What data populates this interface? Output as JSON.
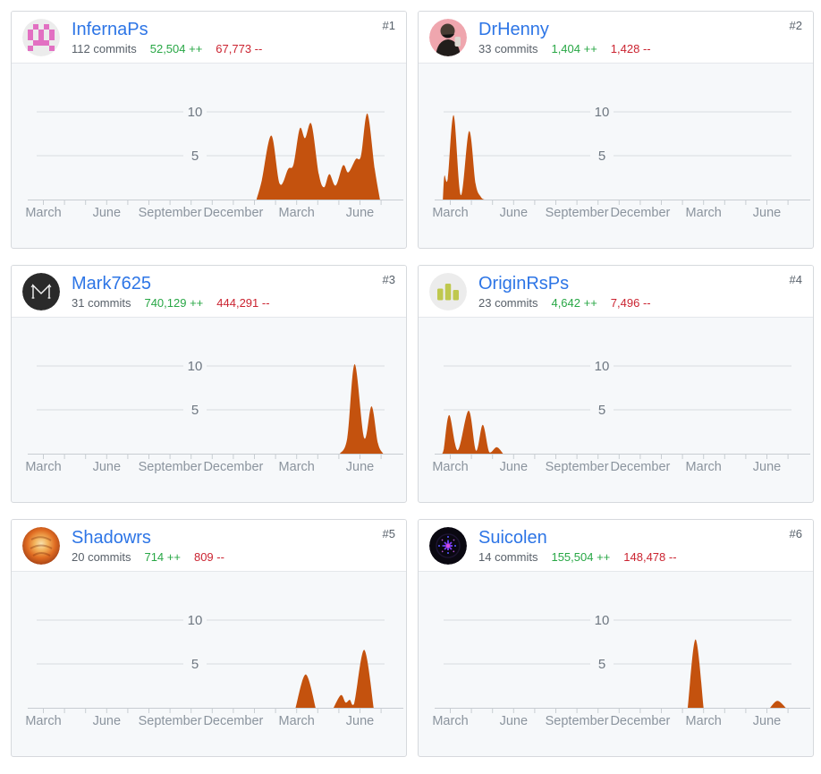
{
  "page": {
    "background": "#ffffff"
  },
  "theme": {
    "card_border": "#d6d9dd",
    "card_header_bg": "#ffffff",
    "chart_bg": "#f6f8fa",
    "link_blue": "#2d75e6",
    "additions_green": "#28a745",
    "deletions_red": "#cb2431",
    "muted_gray": "#586069",
    "rank_gray": "#57606a",
    "axis_line": "#c8cdd2",
    "grid_line": "#d8dce0",
    "tick_label": "#8b949e",
    "y_label": "#6e7781",
    "area_fill": "#c4520e"
  },
  "axis": {
    "x_labels": [
      "March",
      "June",
      "September",
      "December",
      "March",
      "June"
    ],
    "y_ticks": [
      10,
      5
    ],
    "x_unit": "month-index (0 = January year 1, 17 = June year 2)",
    "y_unit": "commits per week"
  },
  "contributors": [
    {
      "rank": "#1",
      "name": "InfernaPs",
      "commits": "112 commits",
      "additions": "52,504 ++",
      "deletions": "67,773 --",
      "avatar": {
        "type": "identicon",
        "fg": "#e270c2",
        "bg": "#ececec"
      },
      "chart_data": {
        "type": "area",
        "areas": [
          [
            [
              12.1,
              0
            ],
            [
              12.35,
              2.2
            ],
            [
              12.8,
              7.3
            ],
            [
              13.2,
              1.8
            ],
            [
              13.6,
              3.5
            ],
            [
              13.85,
              4.0
            ],
            [
              14.15,
              8.1
            ],
            [
              14.4,
              7.0
            ],
            [
              14.7,
              8.6
            ],
            [
              15.05,
              2.9
            ],
            [
              15.3,
              1.4
            ],
            [
              15.55,
              2.9
            ],
            [
              15.85,
              1.6
            ],
            [
              16.2,
              3.9
            ],
            [
              16.45,
              3.1
            ],
            [
              16.8,
              4.6
            ],
            [
              17.05,
              5.0
            ],
            [
              17.35,
              9.8
            ],
            [
              17.7,
              3.5
            ],
            [
              17.95,
              0
            ]
          ]
        ]
      }
    },
    {
      "rank": "#2",
      "name": "DrHenny",
      "commits": "33 commits",
      "additions": "1,404 ++",
      "deletions": "1,428 --",
      "avatar": {
        "type": "photo",
        "bg": "#efa6ae",
        "body": "#211d1b",
        "head": "#473c33",
        "mask": "#141414",
        "accent": "#ddd8d2"
      },
      "chart_data": {
        "type": "area",
        "areas": [
          [
            [
              1.65,
              0
            ],
            [
              1.72,
              2.7
            ],
            [
              1.88,
              2.4
            ],
            [
              2.16,
              9.6
            ],
            [
              2.5,
              0.5
            ],
            [
              2.89,
              7.8
            ],
            [
              3.2,
              1.8
            ],
            [
              3.45,
              0.3
            ],
            [
              3.62,
              0
            ]
          ]
        ]
      }
    },
    {
      "rank": "#3",
      "name": "Mark7625",
      "commits": "31 commits",
      "additions": "740,129 ++",
      "deletions": "444,291 --",
      "avatar": {
        "type": "monogram",
        "bg": "#2a2a2a",
        "fg": "#f5f5f5"
      },
      "chart_data": {
        "type": "area",
        "areas": [
          [
            [
              16.05,
              0
            ],
            [
              16.4,
              1.8
            ],
            [
              16.75,
              10.2
            ],
            [
              17.2,
              1.8
            ],
            [
              17.55,
              5.4
            ],
            [
              17.85,
              1.2
            ],
            [
              18.1,
              0
            ]
          ]
        ]
      }
    },
    {
      "rank": "#4",
      "name": "OriginRsPs",
      "commits": "23 commits",
      "additions": "4,642 ++",
      "deletions": "7,496 --",
      "avatar": {
        "type": "bars",
        "fg": "#bfc84e",
        "bg": "#ececec"
      },
      "chart_data": {
        "type": "area",
        "areas": [
          [
            [
              1.62,
              0
            ],
            [
              1.7,
              0.6
            ],
            [
              1.95,
              4.4
            ],
            [
              2.35,
              0.4
            ],
            [
              2.87,
              4.9
            ],
            [
              3.22,
              0.35
            ],
            [
              3.54,
              3.3
            ],
            [
              3.85,
              0.15
            ],
            [
              4.2,
              0.75
            ],
            [
              4.5,
              0
            ]
          ]
        ]
      }
    },
    {
      "rank": "#5",
      "name": "Shadowrs",
      "commits": "20 commits",
      "additions": "714 ++",
      "deletions": "809 --",
      "avatar": {
        "type": "fire",
        "c1": "#f8e3b0",
        "c2": "#f3b25a",
        "c3": "#e06c22",
        "c4": "#9a3a14"
      },
      "chart_data": {
        "type": "area",
        "areas": [
          [
            [
              13.95,
              0
            ],
            [
              14.43,
              3.8
            ],
            [
              14.9,
              0
            ]
          ],
          [
            [
              15.75,
              0
            ],
            [
              16.1,
              1.45
            ],
            [
              16.32,
              0.6
            ],
            [
              16.52,
              0.9
            ],
            [
              16.72,
              0.45
            ],
            [
              17.2,
              6.6
            ],
            [
              17.65,
              0
            ]
          ]
        ]
      }
    },
    {
      "rank": "#6",
      "name": "Suicolen",
      "commits": "14 commits",
      "additions": "155,504 ++",
      "deletions": "148,478 --",
      "avatar": {
        "type": "starburst",
        "bg": "#0a0811",
        "ray1": "#7a3cf0",
        "ray2": "#b44fd8",
        "dot": "#4444d0",
        "center": "#d84ad8"
      },
      "chart_data": {
        "type": "area",
        "areas": [
          [
            [
              13.25,
              0
            ],
            [
              13.62,
              7.8
            ],
            [
              14.0,
              0
            ]
          ],
          [
            [
              17.15,
              0
            ],
            [
              17.5,
              0.8
            ],
            [
              17.9,
              0
            ]
          ]
        ]
      }
    }
  ]
}
